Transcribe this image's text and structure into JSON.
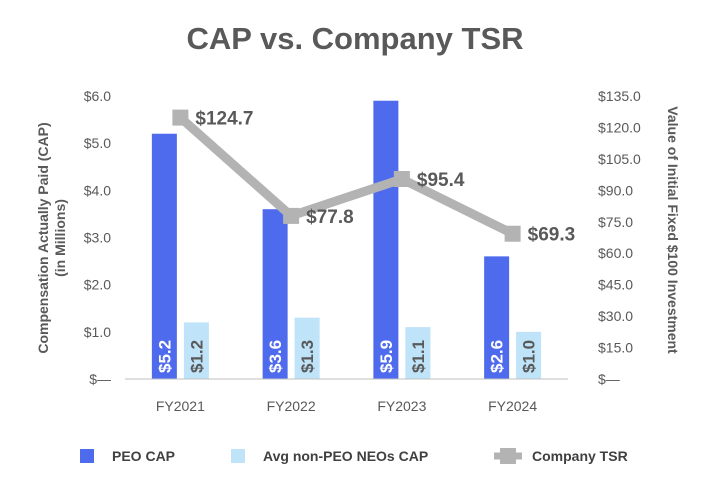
{
  "chart_data": {
    "type": "bar",
    "title": "CAP vs. Company TSR",
    "categories": [
      "FY2021",
      "FY2022",
      "FY2023",
      "FY2024"
    ],
    "ylabel": "Compensation Actually Paid (CAP)",
    "ylabel_line2": "(in Millions)",
    "y2label": "Value of Initial Fixed $100 Investment",
    "ylim": [
      0,
      6
    ],
    "y2lim": [
      0,
      135
    ],
    "y_ticks": [
      "$—",
      "$1.0",
      "$2.0",
      "$3.0",
      "$4.0",
      "$5.0",
      "$6.0"
    ],
    "y2_ticks": [
      "$—",
      "$15.0",
      "$30.0",
      "$45.0",
      "$60.0",
      "$75.0",
      "$90.0",
      "$105.0",
      "$120.0",
      "$135.0"
    ],
    "series": [
      {
        "name": "PEO CAP",
        "kind": "bar",
        "color": "#4f6bed",
        "values": [
          5.2,
          3.6,
          5.9,
          2.6
        ],
        "labels": [
          "$5.2",
          "$3.6",
          "$5.9",
          "$2.6"
        ]
      },
      {
        "name": "Avg non-PEO NEOs CAP",
        "kind": "bar",
        "color": "#bfe3f8",
        "values": [
          1.2,
          1.3,
          1.1,
          1.0
        ],
        "labels": [
          "$1.2",
          "$1.3",
          "$1.1",
          "$1.0"
        ]
      },
      {
        "name": "Company TSR",
        "kind": "line",
        "axis": "right",
        "color": "#b3b3b3",
        "values": [
          124.7,
          77.8,
          95.4,
          69.3
        ],
        "labels": [
          "$124.7",
          "$77.8",
          "$95.4",
          "$69.3"
        ]
      }
    ],
    "legend": "bottom"
  }
}
